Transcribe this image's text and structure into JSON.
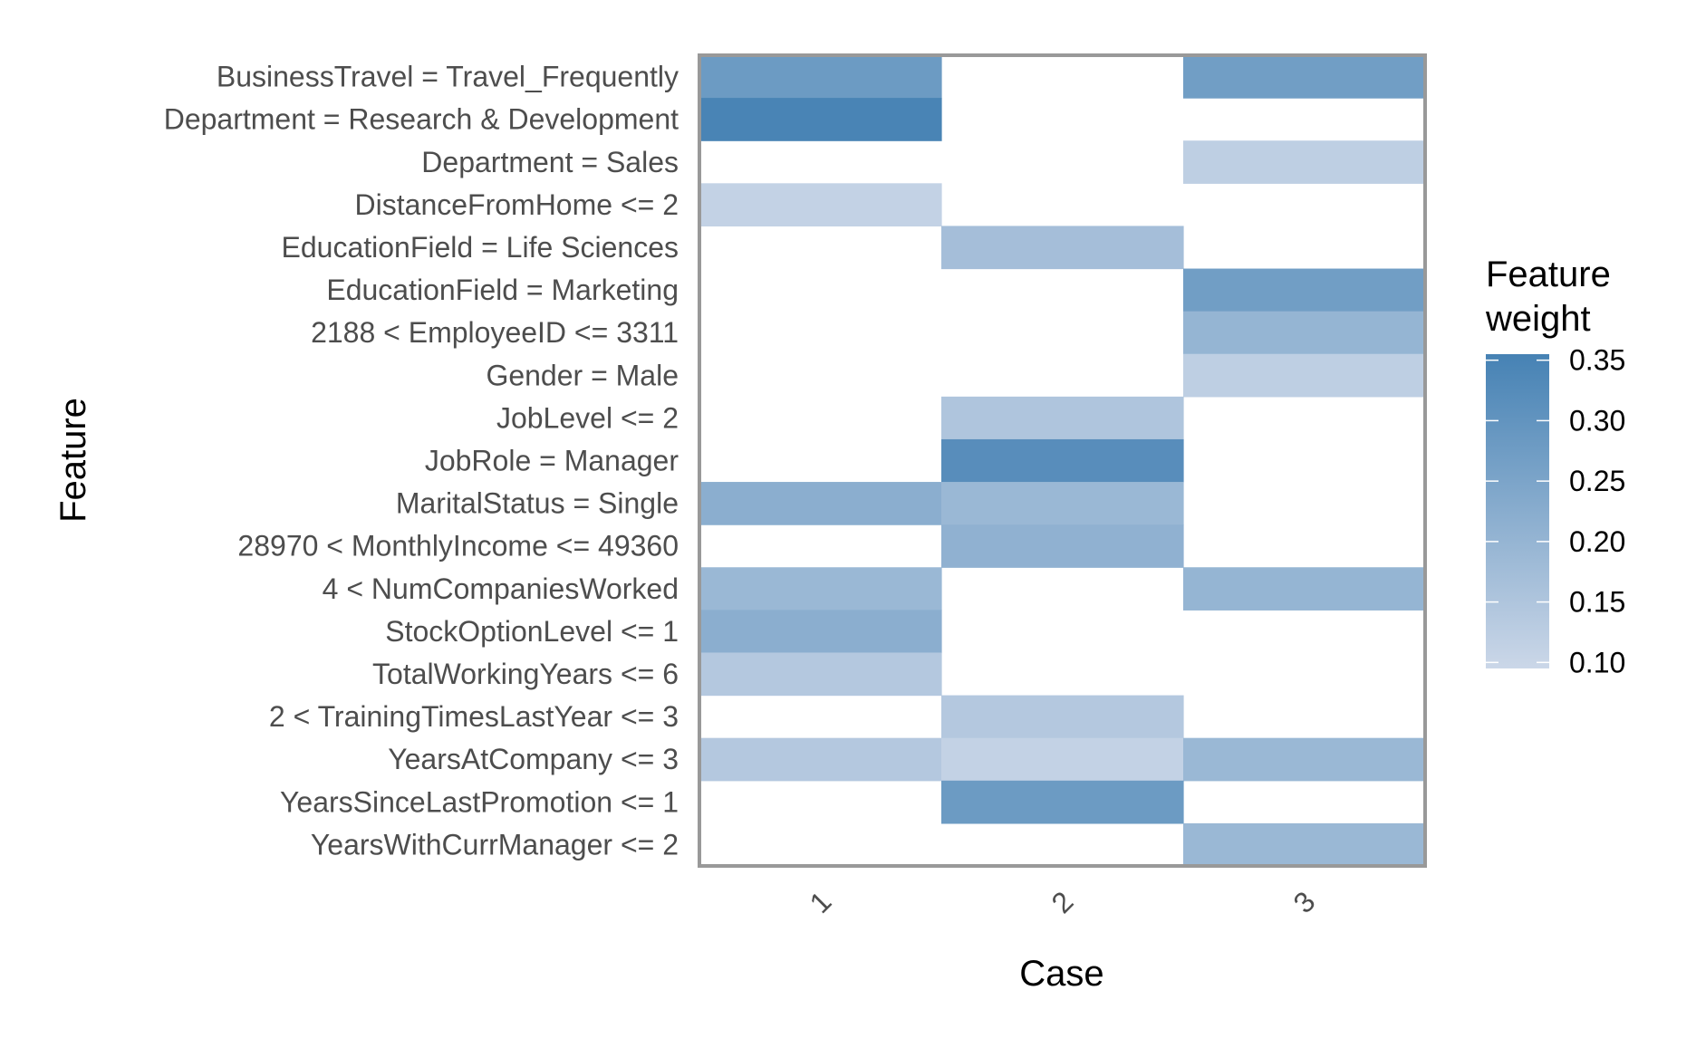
{
  "chart_data": {
    "type": "heatmap",
    "xlabel": "Case",
    "ylabel": "Feature",
    "x_categories": [
      "1",
      "2",
      "3"
    ],
    "y_categories": [
      "BusinessTravel = Travel_Frequently",
      "Department = Research & Development",
      "Department = Sales",
      "DistanceFromHome <= 2",
      "EducationField = Life Sciences",
      "EducationField = Marketing",
      "2188 < EmployeeID <= 3311",
      "Gender = Male",
      "JobLevel <= 2",
      "JobRole = Manager",
      "MaritalStatus = Single",
      "28970 < MonthlyIncome <= 49360",
      "4 < NumCompaniesWorked",
      "StockOptionLevel <= 1",
      "TotalWorkingYears <= 6",
      "2 < TrainingTimesLastYear <= 3",
      "YearsAtCompany <= 3",
      "YearsSinceLastPromotion <= 1",
      "YearsWithCurrManager <= 2"
    ],
    "values": [
      [
        0.28,
        null,
        0.27
      ],
      [
        0.35,
        null,
        null
      ],
      [
        null,
        null,
        0.12
      ],
      [
        0.11,
        null,
        null
      ],
      [
        null,
        0.17,
        null
      ],
      [
        null,
        null,
        0.27
      ],
      [
        null,
        null,
        0.2
      ],
      [
        null,
        null,
        0.12
      ],
      [
        null,
        0.15,
        null
      ],
      [
        null,
        0.32,
        null
      ],
      [
        0.22,
        0.19,
        null
      ],
      [
        null,
        0.21,
        null
      ],
      [
        0.19,
        null,
        0.2
      ],
      [
        0.22,
        null,
        null
      ],
      [
        0.14,
        null,
        null
      ],
      [
        null,
        0.14,
        null
      ],
      [
        0.14,
        0.11,
        0.19
      ],
      [
        null,
        0.28,
        null
      ],
      [
        null,
        null,
        0.19
      ]
    ],
    "color_scale": {
      "title_lines": [
        "Feature",
        "weight"
      ],
      "low_color": "#cbd7e8",
      "high_color": "#4682b4",
      "domain": [
        0.095,
        0.355
      ],
      "ticks": [
        "0.35",
        "0.30",
        "0.25",
        "0.20",
        "0.15",
        "0.10"
      ]
    },
    "panel_border_color": "#999999",
    "legend_position": "right"
  }
}
